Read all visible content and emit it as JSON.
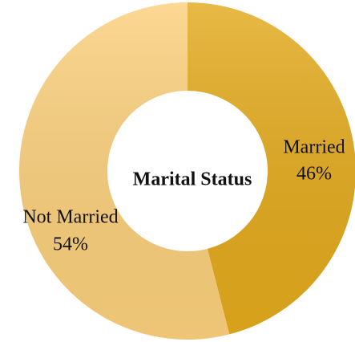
{
  "chart_data": {
    "type": "donut",
    "title": "Marital Status",
    "categories": [
      "Married",
      "Not Married"
    ],
    "values": [
      46,
      54
    ],
    "value_labels": [
      "46%",
      "54%"
    ],
    "colors": [
      "#e3aa1c",
      "#fbd07c"
    ]
  }
}
